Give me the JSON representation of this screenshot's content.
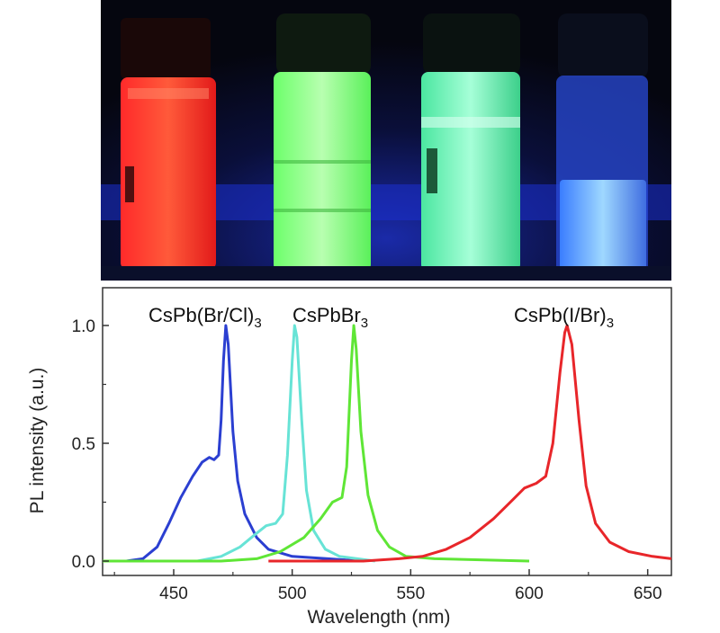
{
  "colors": {
    "blue": "#2b3fd1",
    "cyan": "#67e3d6",
    "green": "#5fe636",
    "red": "#e8262a"
  },
  "chart_data": {
    "type": "line",
    "xlabel": "Wavelength (nm)",
    "ylabel": "PL intensity (a.u.)",
    "xlim": [
      420,
      660
    ],
    "ylim": [
      0,
      1.1
    ],
    "x_ticks": [
      "450",
      "500",
      "550",
      "600",
      "650"
    ],
    "y_ticks": [
      "0.0",
      "0.5",
      "1.0"
    ],
    "series": [
      {
        "name": "CsPb(Br/Cl)",
        "subscript": "3",
        "color": "#2b3fd1",
        "points": [
          [
            430,
            0
          ],
          [
            437,
            0.01
          ],
          [
            443,
            0.06
          ],
          [
            448,
            0.16
          ],
          [
            453,
            0.27
          ],
          [
            458,
            0.36
          ],
          [
            462,
            0.42
          ],
          [
            465,
            0.44
          ],
          [
            467,
            0.43
          ],
          [
            469,
            0.45
          ],
          [
            470,
            0.6
          ],
          [
            471,
            0.85
          ],
          [
            472,
            1.0
          ],
          [
            473,
            0.92
          ],
          [
            475,
            0.55
          ],
          [
            477,
            0.34
          ],
          [
            480,
            0.2
          ],
          [
            485,
            0.1
          ],
          [
            490,
            0.05
          ],
          [
            500,
            0.02
          ],
          [
            515,
            0.01
          ],
          [
            530,
            0
          ]
        ]
      },
      {
        "name": "CsPbBr",
        "subscript": "3",
        "color": "#67e3d6",
        "points": [
          [
            460,
            0
          ],
          [
            470,
            0.02
          ],
          [
            478,
            0.06
          ],
          [
            484,
            0.11
          ],
          [
            489,
            0.15
          ],
          [
            493,
            0.16
          ],
          [
            496,
            0.2
          ],
          [
            498,
            0.45
          ],
          [
            500,
            0.85
          ],
          [
            501,
            1.0
          ],
          [
            502,
            0.95
          ],
          [
            504,
            0.6
          ],
          [
            506,
            0.3
          ],
          [
            509,
            0.13
          ],
          [
            514,
            0.05
          ],
          [
            520,
            0.02
          ],
          [
            535,
            0
          ]
        ]
      },
      {
        "name": "",
        "subscript": "",
        "color": "#5fe636",
        "points": [
          [
            420,
            0
          ],
          [
            470,
            0
          ],
          [
            485,
            0.01
          ],
          [
            495,
            0.04
          ],
          [
            505,
            0.1
          ],
          [
            512,
            0.18
          ],
          [
            517,
            0.25
          ],
          [
            521,
            0.27
          ],
          [
            523,
            0.4
          ],
          [
            525,
            0.85
          ],
          [
            526,
            1.0
          ],
          [
            527,
            0.9
          ],
          [
            529,
            0.55
          ],
          [
            532,
            0.28
          ],
          [
            536,
            0.13
          ],
          [
            541,
            0.06
          ],
          [
            548,
            0.02
          ],
          [
            560,
            0.01
          ],
          [
            600,
            0
          ]
        ]
      },
      {
        "name": "CsPb(I/Br)",
        "subscript": "3",
        "color": "#e8262a",
        "points": [
          [
            490,
            0
          ],
          [
            530,
            0
          ],
          [
            545,
            0.01
          ],
          [
            555,
            0.02
          ],
          [
            565,
            0.05
          ],
          [
            575,
            0.1
          ],
          [
            585,
            0.18
          ],
          [
            593,
            0.26
          ],
          [
            598,
            0.31
          ],
          [
            603,
            0.33
          ],
          [
            607,
            0.36
          ],
          [
            610,
            0.5
          ],
          [
            613,
            0.8
          ],
          [
            615,
            0.97
          ],
          [
            616,
            1.0
          ],
          [
            618,
            0.92
          ],
          [
            621,
            0.6
          ],
          [
            624,
            0.32
          ],
          [
            628,
            0.16
          ],
          [
            634,
            0.08
          ],
          [
            642,
            0.04
          ],
          [
            652,
            0.02
          ],
          [
            660,
            0.01
          ]
        ]
      }
    ]
  }
}
